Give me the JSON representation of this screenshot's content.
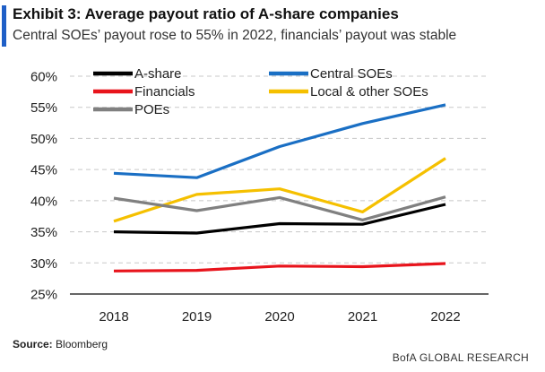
{
  "header": {
    "title": "Exhibit 3: Average payout ratio of A-share companies",
    "subtitle": "Central SOEs’ payout rose to 55% in 2022, financials’ payout was stable"
  },
  "footer": {
    "source_label": "Source:",
    "source_value": "Bloomberg",
    "brand": "BofA GLOBAL RESEARCH"
  },
  "colors": {
    "accent": "#1f5fc7"
  },
  "chart_data": {
    "type": "line",
    "categories": [
      "2018",
      "2019",
      "2020",
      "2021",
      "2022"
    ],
    "y_tick_labels": [
      "25%",
      "30%",
      "35%",
      "40%",
      "45%",
      "50%",
      "55%",
      "60%"
    ],
    "ylim": [
      25,
      60
    ],
    "grid": true,
    "legend_position": "top",
    "series": [
      {
        "name": "A-share",
        "color": "#000000",
        "values": [
          35.0,
          34.8,
          36.3,
          36.2,
          39.4
        ]
      },
      {
        "name": "Central SOEs",
        "color": "#1a6fc4",
        "values": [
          44.4,
          43.7,
          48.7,
          52.4,
          55.4
        ]
      },
      {
        "name": "Financials",
        "color": "#e8141c",
        "values": [
          28.7,
          28.8,
          29.5,
          29.4,
          29.9
        ]
      },
      {
        "name": "Local & other SOEs",
        "color": "#f5c000",
        "values": [
          36.7,
          41.0,
          41.9,
          38.2,
          46.8
        ]
      },
      {
        "name": "POEs",
        "color": "#808080",
        "values": [
          40.4,
          38.4,
          40.5,
          36.9,
          40.6
        ]
      }
    ]
  }
}
